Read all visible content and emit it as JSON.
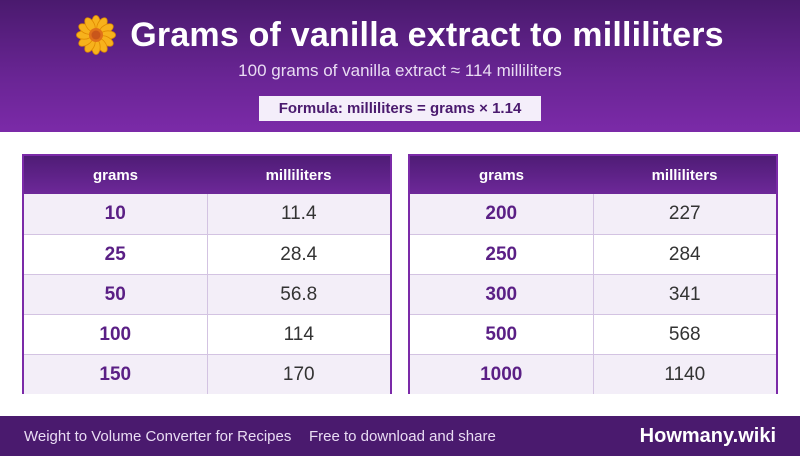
{
  "header": {
    "title": "Grams of vanilla extract to milliliters",
    "subtitle": "100 grams of vanilla extract ≈ 114 milliliters",
    "formula": "Formula: milliliters = grams × 1.14",
    "icon": "flower-icon"
  },
  "tables": [
    {
      "headers": [
        "grams",
        "milliliters"
      ],
      "rows": [
        {
          "grams": "10",
          "ml": "11.4"
        },
        {
          "grams": "25",
          "ml": "28.4"
        },
        {
          "grams": "50",
          "ml": "56.8"
        },
        {
          "grams": "100",
          "ml": "114"
        },
        {
          "grams": "150",
          "ml": "170"
        }
      ]
    },
    {
      "headers": [
        "grams",
        "milliliters"
      ],
      "rows": [
        {
          "grams": "200",
          "ml": "227"
        },
        {
          "grams": "250",
          "ml": "284"
        },
        {
          "grams": "300",
          "ml": "341"
        },
        {
          "grams": "500",
          "ml": "568"
        },
        {
          "grams": "1000",
          "ml": "1140"
        }
      ]
    }
  ],
  "footer": {
    "left": "Weight to Volume Converter for Recipes",
    "middle": "Free to download and share",
    "brand": "Howmany.wiki"
  },
  "colors": {
    "header_dark": "#4a1a6e",
    "header_light": "#7b2aa8",
    "accent_text": "#5a1f85",
    "row_alt": "#f3eef8"
  }
}
